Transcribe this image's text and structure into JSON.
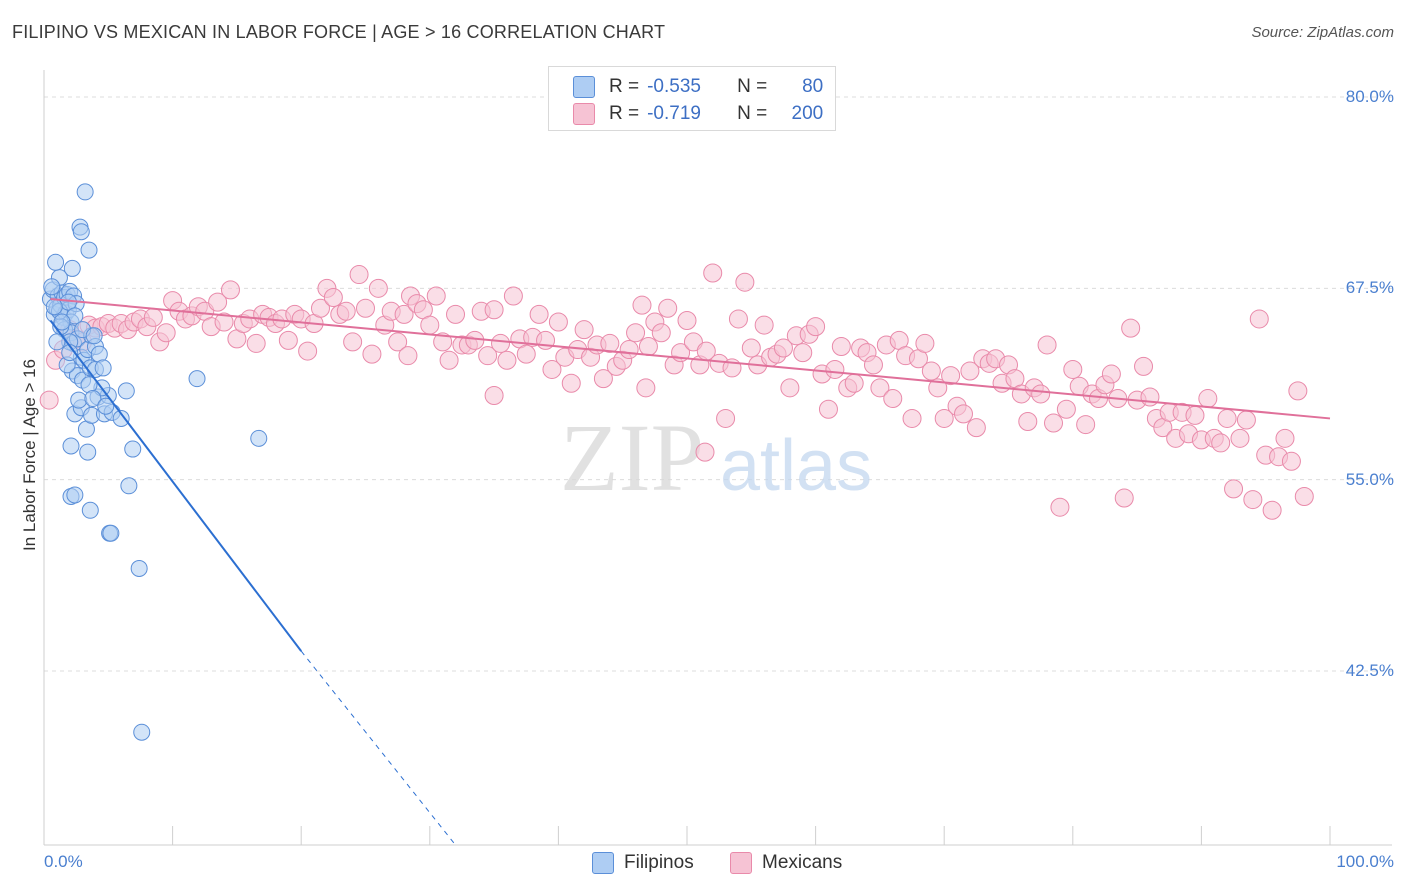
{
  "title": "FILIPINO VS MEXICAN IN LABOR FORCE | AGE > 16 CORRELATION CHART",
  "source": "Source: ZipAtlas.com",
  "watermark": {
    "zip": "ZIP",
    "atlas": "atlas"
  },
  "colors": {
    "blue_fill": "#aecdf3",
    "blue_stroke": "#5b8fd8",
    "blue_line": "#2c6fd1",
    "pink_fill": "#f6c3d4",
    "pink_stroke": "#e98aaa",
    "pink_line": "#e0709a",
    "axis_text": "#4a7fcf",
    "grid": "#dcdcdc"
  },
  "legend": {
    "rows": [
      {
        "r_label": "R =",
        "r_value": "-0.535",
        "n_label": "N =",
        "n_value": "80"
      },
      {
        "r_label": "R =",
        "r_value": "-0.719",
        "n_label": "N =",
        "n_value": "200"
      }
    ]
  },
  "bottom_legend": {
    "filipinos": "Filipinos",
    "mexicans": "Mexicans"
  },
  "chart_data": {
    "type": "scatter",
    "title": "FILIPINO VS MEXICAN IN LABOR FORCE | AGE > 16 CORRELATION CHART",
    "xlabel": "",
    "ylabel": "In Labor Force | Age > 16",
    "xlim": [
      0,
      100
    ],
    "ylim": [
      32,
      83
    ],
    "x_tick_labels": [
      "0.0%",
      "100.0%"
    ],
    "y_ticks": [
      42.5,
      55.0,
      67.5,
      80.0
    ],
    "y_tick_labels": [
      "42.5%",
      "55.0%",
      "67.5%",
      "80.0%"
    ],
    "grid": true,
    "legend_position": "top-center",
    "series": [
      {
        "name": "Filipinos",
        "r": -0.535,
        "n": 80,
        "trend": {
          "x0": 0.5,
          "y0": 65.4,
          "x1": 20,
          "y1": 43.8,
          "dash_to_x": 32,
          "dash_to_y": 30.8
        },
        "points": [
          [
            0.5,
            66.8
          ],
          [
            0.7,
            67.4
          ],
          [
            0.8,
            65.8
          ],
          [
            1.0,
            66.2
          ],
          [
            1.1,
            67.0
          ],
          [
            1.2,
            68.2
          ],
          [
            1.3,
            66.4
          ],
          [
            1.4,
            67.2
          ],
          [
            1.5,
            65.6
          ],
          [
            1.6,
            66.9
          ],
          [
            1.7,
            65.9
          ],
          [
            1.8,
            67.1
          ],
          [
            1.9,
            66.1
          ],
          [
            2.0,
            67.3
          ],
          [
            2.1,
            65.3
          ],
          [
            0.9,
            69.2
          ],
          [
            2.2,
            68.8
          ],
          [
            2.3,
            67.0
          ],
          [
            2.5,
            66.5
          ],
          [
            1.6,
            64.8
          ],
          [
            2.8,
            71.5
          ],
          [
            2.9,
            71.2
          ],
          [
            3.2,
            73.8
          ],
          [
            3.5,
            70.0
          ],
          [
            2.1,
            64.6
          ],
          [
            2.3,
            63.9
          ],
          [
            2.6,
            64.2
          ],
          [
            2.9,
            63.0
          ],
          [
            3.1,
            62.8
          ],
          [
            3.4,
            63.5
          ],
          [
            3.7,
            64.4
          ],
          [
            4.0,
            63.7
          ],
          [
            4.3,
            63.2
          ],
          [
            2.2,
            62.1
          ],
          [
            2.6,
            61.8
          ],
          [
            3.0,
            61.5
          ],
          [
            3.6,
            62.3
          ],
          [
            4.0,
            62.2
          ],
          [
            4.6,
            62.3
          ],
          [
            2.4,
            59.3
          ],
          [
            2.9,
            59.7
          ],
          [
            3.3,
            58.3
          ],
          [
            3.7,
            59.2
          ],
          [
            4.2,
            60.4
          ],
          [
            4.7,
            59.3
          ],
          [
            5.3,
            59.4
          ],
          [
            6.4,
            60.8
          ],
          [
            2.1,
            57.2
          ],
          [
            3.4,
            56.8
          ],
          [
            6.9,
            57.0
          ],
          [
            2.1,
            53.9
          ],
          [
            2.4,
            54.0
          ],
          [
            3.6,
            53.0
          ],
          [
            6.6,
            54.6
          ],
          [
            5.1,
            51.5
          ],
          [
            5.2,
            51.5
          ],
          [
            7.4,
            49.2
          ],
          [
            11.9,
            61.6
          ],
          [
            16.7,
            57.7
          ],
          [
            7.6,
            38.5
          ],
          [
            1.3,
            65.0
          ],
          [
            2.0,
            64.0
          ],
          [
            0.6,
            67.6
          ],
          [
            1.2,
            66.0
          ],
          [
            1.9,
            66.6
          ],
          [
            2.4,
            65.7
          ],
          [
            3.0,
            64.8
          ],
          [
            3.9,
            64.4
          ],
          [
            0.8,
            66.3
          ],
          [
            1.4,
            65.3
          ],
          [
            5.0,
            60.5
          ],
          [
            4.5,
            61.0
          ],
          [
            1.8,
            62.5
          ],
          [
            2.7,
            60.2
          ],
          [
            3.5,
            61.2
          ],
          [
            6.0,
            59.0
          ],
          [
            1.0,
            64.0
          ],
          [
            2.0,
            63.3
          ],
          [
            3.8,
            60.3
          ],
          [
            4.8,
            59.8
          ]
        ]
      },
      {
        "name": "Mexicans",
        "r": -0.719,
        "n": 200,
        "trend": {
          "x0": 0.5,
          "y0": 66.8,
          "x1": 100,
          "y1": 59.0
        },
        "points": [
          [
            0.4,
            60.2
          ],
          [
            0.9,
            62.8
          ],
          [
            1.5,
            63.5
          ],
          [
            2.0,
            64.8
          ],
          [
            2.5,
            64.2
          ],
          [
            3.0,
            64.0
          ],
          [
            3.5,
            65.1
          ],
          [
            4.0,
            64.9
          ],
          [
            4.5,
            65.0
          ],
          [
            5.0,
            65.2
          ],
          [
            5.5,
            64.9
          ],
          [
            6.0,
            65.2
          ],
          [
            6.5,
            64.8
          ],
          [
            7.0,
            65.3
          ],
          [
            7.5,
            65.5
          ],
          [
            8.0,
            65.0
          ],
          [
            8.5,
            65.6
          ],
          [
            9.0,
            64.0
          ],
          [
            9.5,
            64.6
          ],
          [
            10.0,
            66.7
          ],
          [
            10.5,
            66.0
          ],
          [
            11.0,
            65.5
          ],
          [
            11.5,
            65.7
          ],
          [
            12.0,
            66.3
          ],
          [
            12.5,
            66.0
          ],
          [
            13.0,
            65.0
          ],
          [
            13.5,
            66.6
          ],
          [
            14.0,
            65.3
          ],
          [
            14.5,
            67.4
          ],
          [
            15.0,
            64.2
          ],
          [
            15.5,
            65.2
          ],
          [
            16.0,
            65.5
          ],
          [
            16.5,
            63.9
          ],
          [
            17.0,
            65.8
          ],
          [
            17.5,
            65.6
          ],
          [
            18.0,
            65.2
          ],
          [
            18.5,
            65.5
          ],
          [
            19.0,
            64.1
          ],
          [
            19.5,
            65.8
          ],
          [
            20.0,
            65.5
          ],
          [
            20.5,
            63.4
          ],
          [
            21.0,
            65.2
          ],
          [
            21.5,
            66.2
          ],
          [
            22.0,
            67.5
          ],
          [
            22.5,
            66.9
          ],
          [
            23.0,
            65.8
          ],
          [
            23.5,
            66.0
          ],
          [
            24.0,
            64.0
          ],
          [
            24.5,
            68.4
          ],
          [
            25.0,
            66.2
          ],
          [
            25.5,
            63.2
          ],
          [
            26.0,
            67.5
          ],
          [
            26.5,
            65.1
          ],
          [
            27.0,
            66.0
          ],
          [
            27.5,
            64.0
          ],
          [
            28.0,
            65.8
          ],
          [
            28.5,
            67.0
          ],
          [
            29.0,
            66.5
          ],
          [
            29.5,
            66.1
          ],
          [
            30.0,
            65.1
          ],
          [
            30.5,
            67.0
          ],
          [
            31.0,
            64.0
          ],
          [
            31.5,
            62.8
          ],
          [
            32.0,
            65.8
          ],
          [
            32.5,
            63.8
          ],
          [
            33.0,
            63.8
          ],
          [
            33.5,
            64.1
          ],
          [
            34.0,
            66.0
          ],
          [
            34.5,
            63.1
          ],
          [
            35.0,
            66.1
          ],
          [
            35.5,
            63.9
          ],
          [
            36.0,
            62.8
          ],
          [
            36.5,
            67.0
          ],
          [
            37.0,
            64.2
          ],
          [
            37.5,
            63.2
          ],
          [
            38.0,
            64.3
          ],
          [
            38.5,
            65.8
          ],
          [
            39.0,
            64.1
          ],
          [
            39.5,
            62.2
          ],
          [
            40.0,
            65.3
          ],
          [
            40.5,
            63.0
          ],
          [
            41.0,
            61.3
          ],
          [
            41.5,
            63.5
          ],
          [
            42.0,
            64.8
          ],
          [
            42.5,
            63.0
          ],
          [
            43.0,
            63.8
          ],
          [
            43.5,
            61.6
          ],
          [
            44.0,
            63.9
          ],
          [
            44.5,
            62.4
          ],
          [
            45.0,
            62.8
          ],
          [
            45.5,
            63.5
          ],
          [
            46.0,
            64.6
          ],
          [
            46.5,
            66.4
          ],
          [
            47.0,
            63.7
          ],
          [
            47.5,
            65.3
          ],
          [
            48.0,
            64.6
          ],
          [
            48.5,
            66.2
          ],
          [
            49.0,
            62.5
          ],
          [
            49.5,
            63.3
          ],
          [
            50.0,
            65.4
          ],
          [
            50.5,
            64.0
          ],
          [
            51.0,
            62.5
          ],
          [
            51.5,
            63.4
          ],
          [
            52.0,
            68.5
          ],
          [
            52.5,
            62.6
          ],
          [
            53.0,
            59.0
          ],
          [
            53.5,
            62.3
          ],
          [
            54.0,
            65.5
          ],
          [
            54.5,
            67.9
          ],
          [
            55.0,
            63.6
          ],
          [
            55.5,
            62.5
          ],
          [
            56.0,
            65.1
          ],
          [
            56.5,
            63.0
          ],
          [
            57.0,
            63.2
          ],
          [
            57.5,
            63.6
          ],
          [
            58.0,
            61.0
          ],
          [
            58.5,
            64.4
          ],
          [
            59.0,
            63.3
          ],
          [
            59.5,
            64.5
          ],
          [
            60.0,
            65.0
          ],
          [
            60.5,
            61.9
          ],
          [
            61.0,
            59.6
          ],
          [
            61.5,
            62.2
          ],
          [
            62.0,
            63.7
          ],
          [
            62.5,
            61.0
          ],
          [
            63.0,
            61.3
          ],
          [
            63.5,
            63.6
          ],
          [
            64.0,
            63.3
          ],
          [
            64.5,
            62.5
          ],
          [
            65.0,
            61.0
          ],
          [
            65.5,
            63.8
          ],
          [
            66.0,
            60.3
          ],
          [
            66.5,
            64.1
          ],
          [
            67.0,
            63.1
          ],
          [
            67.5,
            59.0
          ],
          [
            68.0,
            62.9
          ],
          [
            68.5,
            63.9
          ],
          [
            69.0,
            62.1
          ],
          [
            69.5,
            61.0
          ],
          [
            70.0,
            59.0
          ],
          [
            70.5,
            61.8
          ],
          [
            71.0,
            59.8
          ],
          [
            71.5,
            59.3
          ],
          [
            72.0,
            62.1
          ],
          [
            72.5,
            58.4
          ],
          [
            73.0,
            62.9
          ],
          [
            73.5,
            62.6
          ],
          [
            74.0,
            62.9
          ],
          [
            74.5,
            61.3
          ],
          [
            75.0,
            62.5
          ],
          [
            75.5,
            61.6
          ],
          [
            76.0,
            60.6
          ],
          [
            76.5,
            58.8
          ],
          [
            77.0,
            61.0
          ],
          [
            77.5,
            60.6
          ],
          [
            78.0,
            63.8
          ],
          [
            78.5,
            58.7
          ],
          [
            79.0,
            53.2
          ],
          [
            79.5,
            59.6
          ],
          [
            80.0,
            62.2
          ],
          [
            80.5,
            61.1
          ],
          [
            81.0,
            58.6
          ],
          [
            81.5,
            60.6
          ],
          [
            82.0,
            60.3
          ],
          [
            82.5,
            61.2
          ],
          [
            83.0,
            61.9
          ],
          [
            83.5,
            60.3
          ],
          [
            84.0,
            53.8
          ],
          [
            84.5,
            64.9
          ],
          [
            85.0,
            60.2
          ],
          [
            85.5,
            62.4
          ],
          [
            86.0,
            60.4
          ],
          [
            86.5,
            59.0
          ],
          [
            87.0,
            58.4
          ],
          [
            87.5,
            59.4
          ],
          [
            88.0,
            57.7
          ],
          [
            88.5,
            59.4
          ],
          [
            89.0,
            58.0
          ],
          [
            89.5,
            59.2
          ],
          [
            90.0,
            57.6
          ],
          [
            90.5,
            60.3
          ],
          [
            91.0,
            57.7
          ],
          [
            91.5,
            57.4
          ],
          [
            92.0,
            59.0
          ],
          [
            92.5,
            54.4
          ],
          [
            93.0,
            57.7
          ],
          [
            93.5,
            58.9
          ],
          [
            94.0,
            53.7
          ],
          [
            94.5,
            65.5
          ],
          [
            95.0,
            56.6
          ],
          [
            95.5,
            53.0
          ],
          [
            96.0,
            56.5
          ],
          [
            96.5,
            57.7
          ],
          [
            97.0,
            56.2
          ],
          [
            97.5,
            60.8
          ],
          [
            98.0,
            53.9
          ],
          [
            51.4,
            56.8
          ],
          [
            46.8,
            61.0
          ],
          [
            35.0,
            60.5
          ],
          [
            28.3,
            63.1
          ]
        ]
      }
    ]
  }
}
